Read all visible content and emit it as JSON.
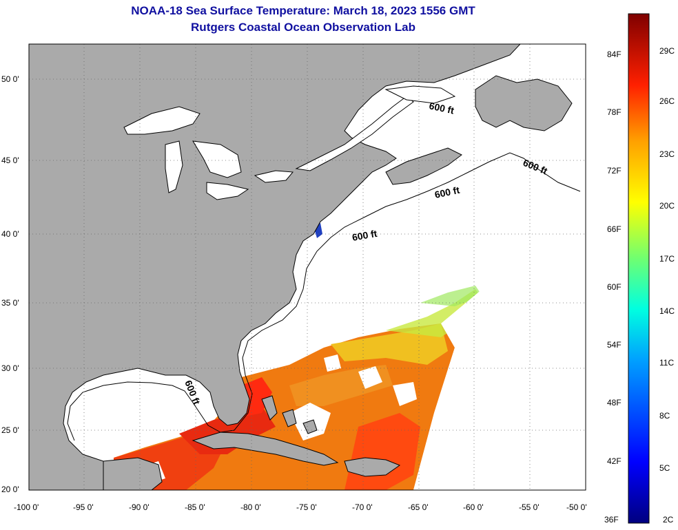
{
  "title": "NOAA-18 Sea Surface Temperature:  March 18, 2023 1556 GMT",
  "subtitle": "Rutgers Coastal Ocean Observation Lab",
  "map": {
    "lon_range": [
      -100,
      -50
    ],
    "lat_range": [
      20,
      52.3
    ],
    "lon_ticks": [
      "-100 0'",
      "-95 0'",
      "-90 0'",
      "-85 0'",
      "-80 0'",
      "-75 0'",
      "-70 0'",
      "-65 0'",
      "-60 0'",
      "-55 0'",
      "-50 0'"
    ],
    "lat_ticks": [
      "20 0'",
      "25 0'",
      "30 0'",
      "35 0'",
      "40 0'",
      "45 0'",
      "50 0'"
    ],
    "contour_label": "600 ft",
    "colors": {
      "land": "#aaaaaa",
      "no_data": "#ffffff"
    }
  },
  "colorbar": {
    "fahrenheit": [
      "84F",
      "78F",
      "72F",
      "66F",
      "60F",
      "54F",
      "48F",
      "42F",
      "36F"
    ],
    "celsius": [
      "29C",
      "26C",
      "23C",
      "20C",
      "17C",
      "14C",
      "11C",
      "8C",
      "5C",
      "2C"
    ]
  }
}
